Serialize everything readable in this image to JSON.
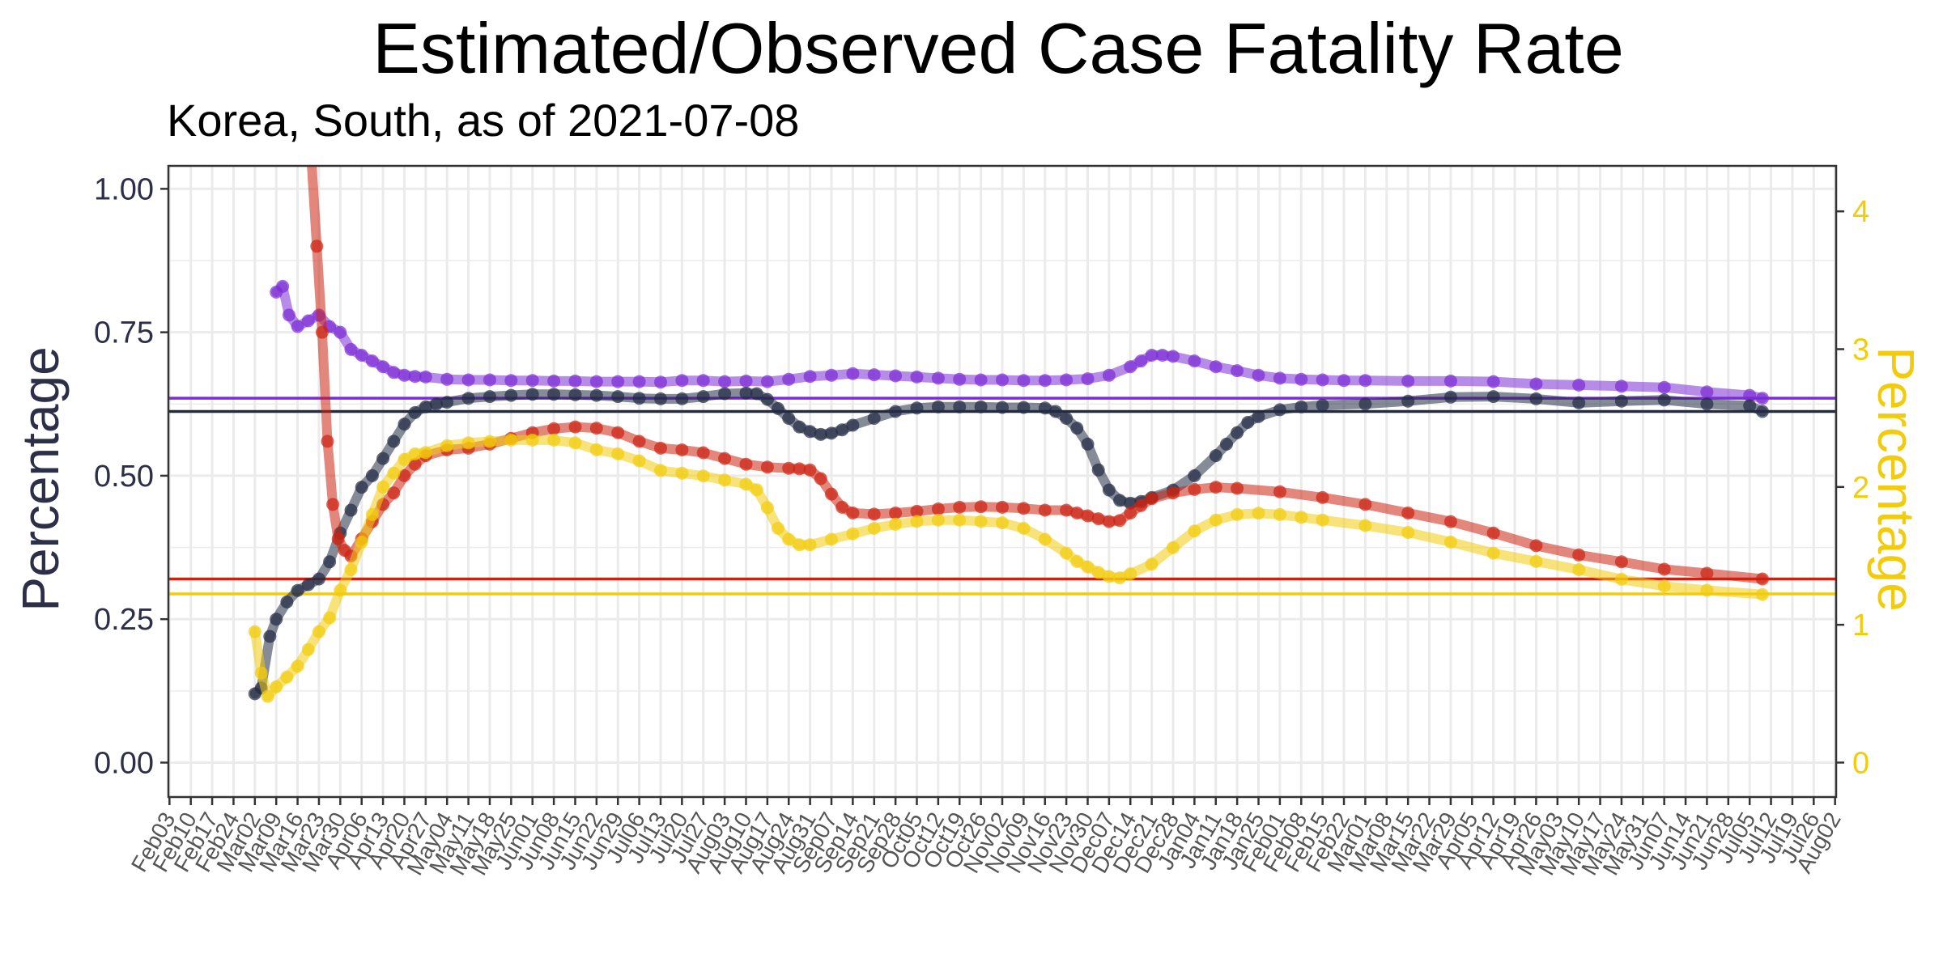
{
  "chart_data": {
    "type": "line",
    "title": "Estimated/Observed Case Fatality Rate",
    "subtitle": "Korea, South, as of 2021-07-08",
    "ylabel": "Percentage",
    "ylabel_right": "Percentage",
    "ylim": [
      -0.06,
      1.04
    ],
    "ylim_right": [
      -0.25,
      4.33
    ],
    "y_ticks": [
      "0.00",
      "0.25",
      "0.50",
      "0.75",
      "1.00"
    ],
    "y_ticks_right": [
      "0",
      "1",
      "2",
      "3",
      "4"
    ],
    "grid": true,
    "x_ticks": [
      "Feb03",
      "Feb10",
      "Feb17",
      "Feb24",
      "Mar02",
      "Mar09",
      "Mar16",
      "Mar23",
      "Mar30",
      "Apr06",
      "Apr13",
      "Apr20",
      "Apr27",
      "May04",
      "May11",
      "May18",
      "May25",
      "Jun01",
      "Jun08",
      "Jun15",
      "Jun22",
      "Jun29",
      "Jul06",
      "Jul13",
      "Jul20",
      "Jul27",
      "Aug03",
      "Aug10",
      "Aug17",
      "Aug24",
      "Aug31",
      "Sep07",
      "Sep14",
      "Sep21",
      "Sep28",
      "Oct05",
      "Oct12",
      "Oct19",
      "Oct26",
      "Nov02",
      "Nov09",
      "Nov16",
      "Nov23",
      "Nov30",
      "Dec07",
      "Dec14",
      "Dec21",
      "Dec28",
      "Jan04",
      "Jan11",
      "Jan18",
      "Jan25",
      "Feb01",
      "Feb08",
      "Feb15",
      "Feb22",
      "Mar01",
      "Mar08",
      "Mar15",
      "Mar22",
      "Mar29",
      "Apr05",
      "Apr12",
      "Apr19",
      "Apr26",
      "May03",
      "May10",
      "May17",
      "May24",
      "May31",
      "Jun07",
      "Jun14",
      "Jun21",
      "Jun28",
      "Jul05",
      "Jul12",
      "Jul19",
      "Jul26",
      "Aug02"
    ],
    "x_unit": "weeks since Feb03",
    "hlines": [
      {
        "value": 0.635,
        "color": "#7b2cd6"
      },
      {
        "value": 0.612,
        "color": "#222b44"
      },
      {
        "value": 0.32,
        "color": "#cc2211"
      },
      {
        "value": 0.294,
        "color": "#f2cc0c"
      }
    ],
    "series": [
      {
        "color": "#7b2cd6",
        "x": [
          5.0,
          5.3,
          5.6,
          6.0,
          6.5,
          7.0,
          7.5,
          8.0,
          8.5,
          9.0,
          9.5,
          10.0,
          10.5,
          11.0,
          11.5,
          12.0,
          13.0,
          14.0,
          15.0,
          16.0,
          17.0,
          18.0,
          19.0,
          20.0,
          21.0,
          22.0,
          23.0,
          24.0,
          25.0,
          26.0,
          27.0,
          28.0,
          29.0,
          30.0,
          31.0,
          32.0,
          33.0,
          34.0,
          35.0,
          36.0,
          37.0,
          38.0,
          39.0,
          40.0,
          41.0,
          42.0,
          43.0,
          44.0,
          45.0,
          45.5,
          46.0,
          46.5,
          47.0,
          48.0,
          49.0,
          50.0,
          51.0,
          52.0,
          53.0,
          54.0,
          55.0,
          56.0,
          58.0,
          60.0,
          62.0,
          64.0,
          66.0,
          68.0,
          70.0,
          72.0,
          74.0,
          74.6
        ],
        "values": [
          0.82,
          0.83,
          0.78,
          0.76,
          0.77,
          0.78,
          0.76,
          0.75,
          0.72,
          0.71,
          0.7,
          0.69,
          0.68,
          0.675,
          0.673,
          0.672,
          0.668,
          0.667,
          0.667,
          0.666,
          0.666,
          0.665,
          0.665,
          0.664,
          0.664,
          0.664,
          0.663,
          0.666,
          0.666,
          0.664,
          0.665,
          0.664,
          0.668,
          0.673,
          0.675,
          0.678,
          0.676,
          0.674,
          0.672,
          0.67,
          0.668,
          0.667,
          0.667,
          0.666,
          0.666,
          0.667,
          0.669,
          0.675,
          0.69,
          0.7,
          0.71,
          0.71,
          0.708,
          0.7,
          0.69,
          0.683,
          0.675,
          0.67,
          0.668,
          0.667,
          0.666,
          0.666,
          0.665,
          0.665,
          0.664,
          0.66,
          0.658,
          0.656,
          0.654,
          0.646,
          0.64,
          0.635
        ]
      },
      {
        "color": "#222b44",
        "x": [
          4.0,
          4.3,
          4.7,
          5.0,
          5.5,
          6.0,
          6.5,
          7.0,
          7.5,
          8.0,
          8.5,
          9.0,
          9.5,
          10.0,
          10.5,
          11.0,
          11.5,
          12.0,
          12.5,
          13.0,
          14.0,
          15.0,
          16.0,
          17.0,
          18.0,
          19.0,
          20.0,
          21.0,
          22.0,
          23.0,
          24.0,
          25.0,
          26.0,
          27.0,
          27.5,
          28.0,
          28.5,
          29.0,
          29.5,
          30.0,
          30.5,
          31.0,
          31.5,
          32.0,
          33.0,
          34.0,
          35.0,
          36.0,
          37.0,
          38.0,
          39.0,
          40.0,
          41.0,
          41.5,
          42.0,
          42.5,
          43.0,
          43.5,
          44.0,
          44.5,
          45.0,
          45.5,
          46.0,
          47.0,
          48.0,
          49.0,
          49.5,
          50.0,
          50.5,
          51.0,
          52.0,
          53.0,
          54.0,
          56.0,
          58.0,
          60.0,
          62.0,
          64.0,
          66.0,
          68.0,
          70.0,
          72.0,
          74.0,
          74.6
        ],
        "values": [
          0.12,
          0.13,
          0.22,
          0.25,
          0.28,
          0.3,
          0.31,
          0.32,
          0.35,
          0.4,
          0.44,
          0.48,
          0.5,
          0.53,
          0.56,
          0.59,
          0.61,
          0.62,
          0.625,
          0.628,
          0.635,
          0.638,
          0.64,
          0.642,
          0.642,
          0.641,
          0.64,
          0.638,
          0.635,
          0.634,
          0.634,
          0.638,
          0.643,
          0.644,
          0.643,
          0.633,
          0.617,
          0.6,
          0.585,
          0.577,
          0.572,
          0.574,
          0.58,
          0.588,
          0.6,
          0.612,
          0.618,
          0.62,
          0.62,
          0.62,
          0.619,
          0.619,
          0.618,
          0.612,
          0.6,
          0.583,
          0.555,
          0.51,
          0.475,
          0.457,
          0.452,
          0.455,
          0.462,
          0.475,
          0.5,
          0.535,
          0.555,
          0.575,
          0.593,
          0.603,
          0.615,
          0.62,
          0.623,
          0.625,
          0.63,
          0.637,
          0.638,
          0.634,
          0.627,
          0.63,
          0.632,
          0.625,
          0.622,
          0.612
        ]
      },
      {
        "color": "#cc2211",
        "x": [
          6.65,
          6.9,
          7.15,
          7.4,
          7.65,
          7.9,
          8.2,
          8.5,
          9.0,
          9.5,
          10.0,
          10.5,
          11.0,
          11.5,
          12.0,
          13.0,
          14.0,
          15.0,
          16.0,
          17.0,
          18.0,
          19.0,
          20.0,
          21.0,
          22.0,
          23.0,
          24.0,
          25.0,
          26.0,
          27.0,
          28.0,
          29.0,
          29.5,
          30.0,
          30.5,
          31.0,
          31.5,
          32.0,
          33.0,
          34.0,
          35.0,
          36.0,
          37.0,
          38.0,
          39.0,
          40.0,
          41.0,
          42.0,
          42.5,
          43.0,
          43.5,
          44.0,
          44.5,
          45.0,
          45.5,
          46.0,
          47.0,
          48.0,
          49.0,
          50.0,
          52.0,
          54.0,
          56.0,
          58.0,
          60.0,
          62.0,
          64.0,
          66.0,
          68.0,
          70.0,
          72.0,
          74.6
        ],
        "values": [
          1.05,
          0.9,
          0.75,
          0.56,
          0.45,
          0.39,
          0.37,
          0.36,
          0.39,
          0.42,
          0.45,
          0.47,
          0.5,
          0.52,
          0.535,
          0.545,
          0.548,
          0.555,
          0.565,
          0.575,
          0.582,
          0.585,
          0.583,
          0.575,
          0.56,
          0.548,
          0.545,
          0.54,
          0.53,
          0.52,
          0.515,
          0.513,
          0.512,
          0.51,
          0.495,
          0.468,
          0.445,
          0.435,
          0.433,
          0.435,
          0.438,
          0.442,
          0.445,
          0.446,
          0.445,
          0.443,
          0.44,
          0.44,
          0.435,
          0.43,
          0.425,
          0.42,
          0.422,
          0.435,
          0.448,
          0.46,
          0.47,
          0.476,
          0.48,
          0.478,
          0.472,
          0.462,
          0.45,
          0.435,
          0.42,
          0.4,
          0.378,
          0.362,
          0.35,
          0.337,
          0.33,
          0.32
        ]
      },
      {
        "color": "#f2cc0c",
        "x": [
          4.0,
          4.3,
          4.6,
          5.0,
          5.5,
          6.0,
          6.5,
          7.0,
          7.5,
          8.0,
          8.5,
          9.0,
          9.5,
          10.0,
          10.5,
          11.0,
          11.5,
          12.0,
          13.0,
          14.0,
          15.0,
          16.0,
          17.0,
          18.0,
          19.0,
          20.0,
          21.0,
          22.0,
          23.0,
          24.0,
          25.0,
          26.0,
          27.0,
          27.5,
          28.0,
          28.5,
          29.0,
          29.5,
          30.0,
          31.0,
          32.0,
          33.0,
          34.0,
          35.0,
          36.0,
          37.0,
          38.0,
          39.0,
          40.0,
          41.0,
          42.0,
          42.5,
          43.0,
          43.5,
          44.0,
          44.5,
          45.0,
          46.0,
          47.0,
          48.0,
          49.0,
          50.0,
          51.0,
          52.0,
          53.0,
          54.0,
          56.0,
          58.0,
          60.0,
          62.0,
          64.0,
          66.0,
          68.0,
          70.0,
          72.0,
          74.6
        ],
        "values": [
          0.95,
          0.65,
          0.48,
          0.55,
          0.62,
          0.7,
          0.82,
          0.95,
          1.05,
          1.25,
          1.4,
          1.6,
          1.8,
          2.0,
          2.1,
          2.2,
          2.24,
          2.25,
          2.3,
          2.32,
          2.33,
          2.34,
          2.34,
          2.34,
          2.32,
          2.27,
          2.24,
          2.19,
          2.12,
          2.1,
          2.08,
          2.05,
          2.02,
          1.98,
          1.85,
          1.7,
          1.62,
          1.58,
          1.58,
          1.62,
          1.66,
          1.7,
          1.73,
          1.75,
          1.76,
          1.76,
          1.75,
          1.74,
          1.7,
          1.62,
          1.52,
          1.46,
          1.42,
          1.38,
          1.35,
          1.34,
          1.37,
          1.44,
          1.56,
          1.68,
          1.76,
          1.8,
          1.81,
          1.8,
          1.78,
          1.76,
          1.72,
          1.67,
          1.6,
          1.52,
          1.46,
          1.4,
          1.33,
          1.28,
          1.25,
          1.22
        ],
        "axis": "right"
      }
    ]
  }
}
